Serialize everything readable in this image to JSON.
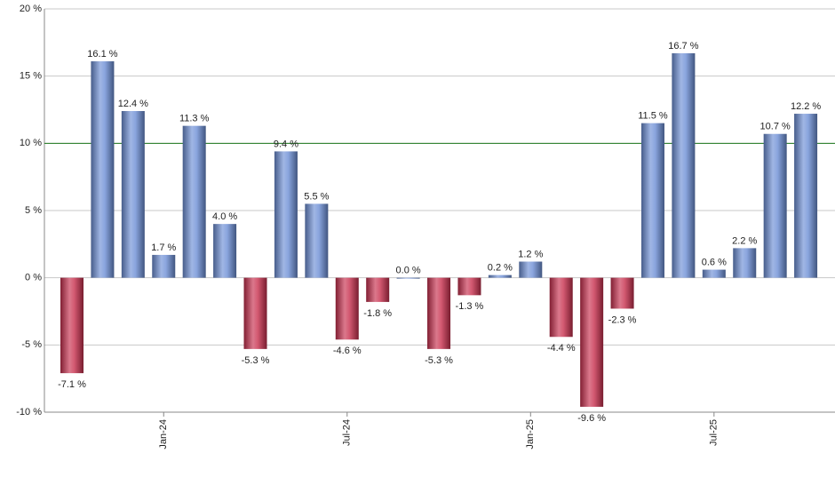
{
  "chart_data": {
    "type": "bar",
    "categories": [
      null,
      null,
      null,
      "Jan-24",
      null,
      null,
      null,
      null,
      null,
      "Jul-24",
      null,
      null,
      null,
      null,
      null,
      "Jan-25",
      null,
      null,
      null,
      null,
      null,
      "Jul-25",
      null,
      null,
      null
    ],
    "values": [
      -7.1,
      16.1,
      12.4,
      1.7,
      11.3,
      4.0,
      -5.3,
      9.4,
      5.5,
      -4.6,
      -1.8,
      0.0,
      -5.3,
      -1.3,
      0.2,
      1.2,
      -4.4,
      -9.6,
      -2.3,
      11.5,
      16.7,
      0.6,
      2.2,
      10.7,
      12.2
    ],
    "value_labels": [
      "-7.1 %",
      "16.1 %",
      "12.4 %",
      "1.7 %",
      "11.3 %",
      "4.0 %",
      "-5.3 %",
      "9.4 %",
      "5.5 %",
      "-4.6 %",
      "-1.8 %",
      "0.0 %",
      "-5.3 %",
      "-1.3 %",
      "0.2 %",
      "1.2 %",
      "-4.4 %",
      "-9.6 %",
      "-2.3 %",
      "11.5 %",
      "16.7 %",
      "0.6 %",
      "2.2 %",
      "10.7 %",
      "12.2 %"
    ],
    "positive_color": "#6d8fd6",
    "negative_color": "#c8304e",
    "ylim": [
      -10,
      20
    ],
    "yticks": [
      {
        "value": -10,
        "label": "-10 %"
      },
      {
        "value": -5,
        "label": "-5 %"
      },
      {
        "value": 0,
        "label": "0 %"
      },
      {
        "value": 5,
        "label": "5 %"
      },
      {
        "value": 10,
        "label": "10 %"
      },
      {
        "value": 15,
        "label": "15 %"
      },
      {
        "value": 20,
        "label": "20 %"
      }
    ],
    "grid": true,
    "reference_line": 10,
    "reference_color": "#1e7a1e"
  }
}
